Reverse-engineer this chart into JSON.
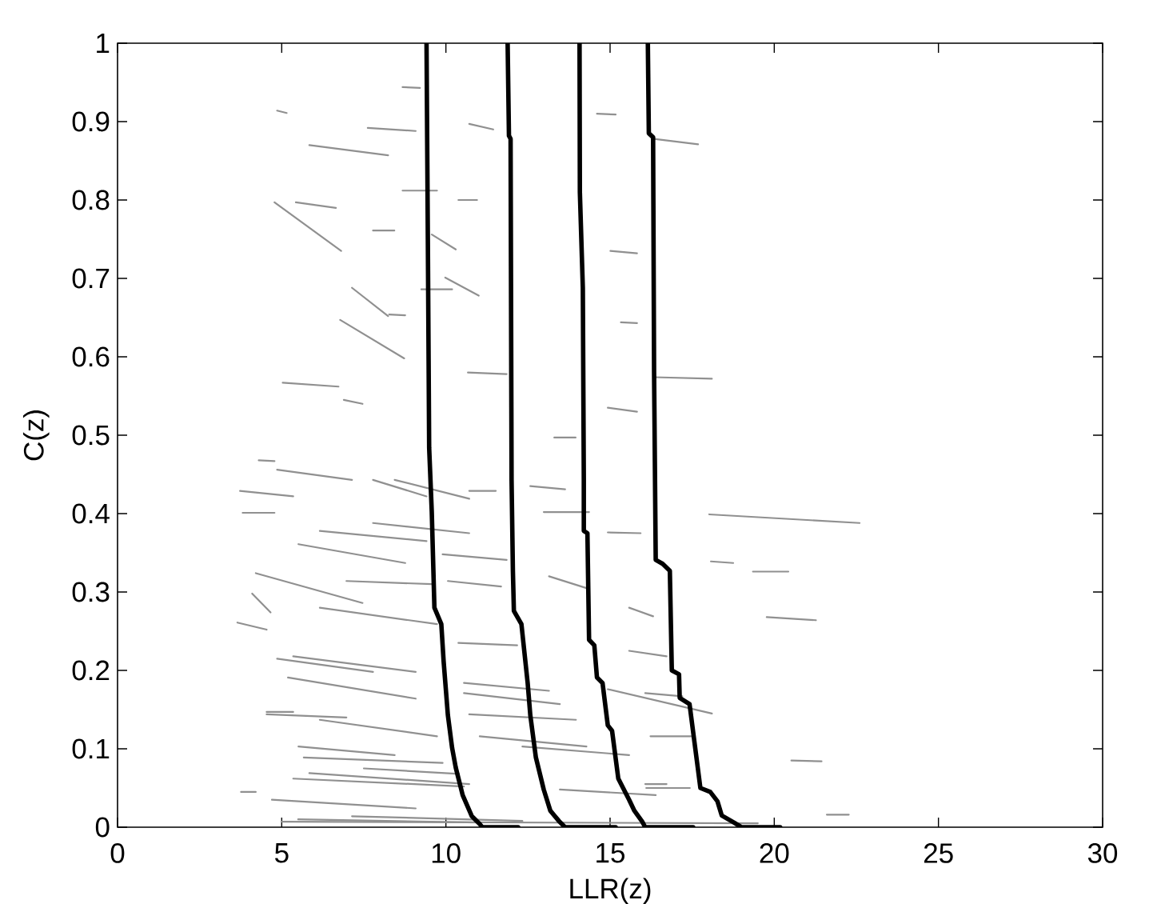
{
  "chart_data": {
    "type": "line",
    "xlabel": "LLR(z)",
    "ylabel": "C(z)",
    "xlim": [
      0,
      30
    ],
    "ylim": [
      0,
      1
    ],
    "xticks": [
      0,
      5,
      10,
      15,
      20,
      25,
      30
    ],
    "yticks": [
      0,
      0.1,
      0.2,
      0.3,
      0.4,
      0.5,
      0.6,
      0.7,
      0.8,
      0.9,
      1
    ],
    "line_style": "solid",
    "series": [
      {
        "color": "#909090",
        "x": [
          3.65,
          4.54,
          null,
          4.7,
          9.08,
          null,
          9.25,
          10.19,
          null,
          10.38,
          10.95,
          null,
          12.33,
          15.58,
          null,
          16.07,
          17.2,
          null,
          18.02,
          22.6
        ],
        "values": [
          0.261,
          0.252,
          null,
          0.035,
          0.024,
          null,
          0.686,
          0.686,
          null,
          0.8,
          0.8,
          null,
          0.103,
          0.092,
          null,
          0.171,
          0.167,
          null,
          0.399,
          0.388
        ]
      },
      {
        "color": "#909090",
        "x": [
          3.73,
          5.35,
          null,
          5.5,
          11.0,
          null,
          12.57,
          13.63,
          null,
          14.6,
          15.17,
          null,
          15.58,
          16.72,
          null,
          19.35,
          20.43,
          null,
          21.6,
          22.27
        ],
        "values": [
          0.429,
          0.422,
          null,
          0.01,
          0.006,
          null,
          0.435,
          0.431,
          null,
          0.91,
          0.909,
          null,
          0.225,
          0.218,
          null,
          0.326,
          0.326,
          null,
          0.016,
          0.016
        ]
      },
      {
        "color": "#909090",
        "x": [
          3.76,
          4.21,
          null,
          4.3,
          4.78,
          null,
          4.86,
          5.15,
          null,
          5.35,
          9.08,
          null,
          9.57,
          10.3,
          null,
          10.55,
          13.14,
          null,
          13.3,
          13.95,
          null,
          14.93,
          15.93,
          null,
          16.07,
          16.72,
          null,
          18.07,
          18.75,
          null,
          19.77,
          21.27
        ],
        "values": [
          0.045,
          0.045,
          null,
          0.468,
          0.467,
          null,
          0.914,
          0.911,
          null,
          0.218,
          0.198,
          null,
          0.756,
          0.737,
          null,
          0.184,
          0.174,
          null,
          0.497,
          0.497,
          null,
          0.376,
          0.375,
          null,
          0.055,
          0.055,
          null,
          0.339,
          0.337,
          null,
          0.268,
          0.264
        ]
      },
      {
        "color": "#909090",
        "x": [
          3.81,
          4.78,
          null,
          5.0,
          19.5,
          null,
          20.52,
          21.44
        ],
        "values": [
          0.401,
          0.401,
          null,
          0.007,
          0.005,
          null,
          0.085,
          0.084
        ]
      },
      {
        "color": "#909090",
        "x": [
          4.1,
          4.66,
          null,
          4.78,
          6.81,
          null,
          6.97,
          9.57,
          null,
          9.9,
          11.85,
          null,
          16.34,
          17.68
        ],
        "values": [
          0.298,
          0.274,
          null,
          0.797,
          0.735,
          null,
          0.314,
          0.31,
          null,
          0.348,
          0.341,
          null,
          0.878,
          0.871
        ]
      },
      {
        "color": "#909090",
        "x": [
          4.21,
          7.46,
          null,
          7.62,
          9.08,
          null,
          9.98,
          11.0,
          null,
          13.14,
          14.28,
          null,
          14.93,
          18.1
        ],
        "values": [
          0.324,
          0.286,
          null,
          0.892,
          0.888,
          null,
          0.701,
          0.678,
          null,
          0.32,
          0.305,
          null,
          0.176,
          0.145
        ]
      },
      {
        "color": "#909090",
        "x": [
          4.54,
          5.35,
          null,
          5.51,
          8.44,
          null,
          8.68,
          9.21,
          null,
          10.06,
          11.68,
          null,
          12.98,
          14.36,
          null,
          14.93,
          15.82,
          null,
          16.1,
          17.43
        ],
        "values": [
          0.147,
          0.147,
          null,
          0.103,
          0.092,
          null,
          0.944,
          0.943,
          null,
          0.314,
          0.307,
          null,
          0.402,
          0.402,
          null,
          0.535,
          0.53,
          null,
          0.05,
          0.05
        ]
      },
      {
        "color": "#909090",
        "x": [
          4.54,
          6.97,
          null,
          7.14,
          8.24,
          null,
          8.68,
          9.73,
          null,
          13.47,
          16.39
        ],
        "values": [
          0.144,
          0.14,
          null,
          0.688,
          0.652,
          null,
          0.812,
          0.812,
          null,
          0.048,
          0.041
        ]
      },
      {
        "color": "#909090",
        "x": [
          4.86,
          7.78,
          null,
          8.27,
          8.76,
          null,
          10.38,
          12.17,
          null,
          15.01,
          15.82,
          null,
          16.23,
          17.53
        ],
        "values": [
          0.215,
          0.198,
          null,
          0.654,
          0.653,
          null,
          0.235,
          0.232,
          null,
          0.735,
          0.732,
          null,
          0.116,
          0.116
        ]
      },
      {
        "color": "#909090",
        "x": [
          4.86,
          7.14,
          null,
          7.5,
          10.4,
          null,
          10.55,
          13.47,
          null,
          15.33,
          15.82,
          null,
          16.34,
          18.1
        ],
        "values": [
          0.456,
          0.443,
          null,
          0.075,
          0.068,
          null,
          0.171,
          0.157,
          null,
          0.644,
          0.643,
          null,
          0.574,
          0.572
        ]
      },
      {
        "color": "#909090",
        "x": [
          5.03,
          6.73,
          null,
          6.89,
          7.46,
          null,
          7.78,
          8.43,
          null,
          10.67,
          11.85,
          null,
          15.58,
          16.31
        ],
        "values": [
          0.567,
          0.562,
          null,
          0.545,
          0.54,
          null,
          0.761,
          0.761,
          null,
          0.58,
          0.578,
          null,
          0.28,
          0.269
        ]
      },
      {
        "color": "#909090",
        "x": [
          5.19,
          9.08,
          null,
          10.71,
          11.44
        ],
        "values": [
          0.191,
          0.164,
          null,
          0.897,
          0.89
        ]
      },
      {
        "color": "#909090",
        "x": [
          5.35,
          10.55,
          null,
          10.71,
          13.96
        ],
        "values": [
          0.062,
          0.052,
          null,
          0.144,
          0.137
        ]
      },
      {
        "color": "#909090",
        "x": [
          5.43,
          6.65,
          null,
          6.78,
          8.73,
          null,
          10.71,
          11.52
        ],
        "values": [
          0.797,
          0.79,
          null,
          0.647,
          0.598,
          null,
          0.429,
          0.429
        ]
      },
      {
        "color": "#909090",
        "x": [
          5.51,
          8.76,
          null,
          11.03,
          14.28
        ],
        "values": [
          0.361,
          0.337,
          null,
          0.116,
          0.103
        ]
      },
      {
        "color": "#909090",
        "x": [
          5.67,
          9.9
        ],
        "values": [
          0.089,
          0.082
        ]
      },
      {
        "color": "#909090",
        "x": [
          5.84,
          8.24,
          null,
          8.44,
          10.71
        ],
        "values": [
          0.87,
          0.857,
          null,
          0.443,
          0.419
        ]
      },
      {
        "color": "#909090",
        "x": [
          5.84,
          10.71
        ],
        "values": [
          0.069,
          0.055
        ]
      },
      {
        "color": "#909090",
        "x": [
          6.16,
          9.73
        ],
        "values": [
          0.137,
          0.116
        ]
      },
      {
        "color": "#909090",
        "x": [
          6.16,
          9.73
        ],
        "values": [
          0.28,
          0.259
        ]
      },
      {
        "color": "#909090",
        "x": [
          6.16,
          9.41
        ],
        "values": [
          0.378,
          0.365
        ]
      },
      {
        "color": "#909090",
        "x": [
          7.14,
          12.33
        ],
        "values": [
          0.014,
          0.008
        ]
      },
      {
        "color": "#909090",
        "x": [
          7.78,
          10.71
        ],
        "values": [
          0.388,
          0.375
        ]
      },
      {
        "color": "#909090",
        "x": [
          7.78,
          9.41
        ],
        "values": [
          0.443,
          0.422
        ]
      },
      {
        "color": "#000000",
        "x": [
          9.41,
          9.45,
          9.49,
          9.57,
          9.65,
          9.86,
          9.93,
          10.06,
          10.19,
          10.3,
          10.51,
          10.79,
          11.03,
          11.11,
          12.2
        ],
        "values": [
          1,
          0.75,
          0.484,
          0.402,
          0.28,
          0.259,
          0.212,
          0.143,
          0.101,
          0.076,
          0.041,
          0.014,
          0.004,
          0,
          0
        ]
      },
      {
        "color": "#000000",
        "x": [
          11.88,
          11.92,
          11.97,
          12.0,
          12.04,
          12.07,
          12.3,
          12.49,
          12.57,
          12.74,
          12.98,
          13.18,
          13.44,
          13.63,
          15.17
        ],
        "values": [
          1,
          0.882,
          0.878,
          0.443,
          0.327,
          0.276,
          0.259,
          0.184,
          0.143,
          0.089,
          0.048,
          0.021,
          0.008,
          0,
          0
        ]
      },
      {
        "color": "#000000",
        "x": [
          14.07,
          14.08,
          14.17,
          14.2,
          14.2,
          14.31,
          14.36,
          14.52,
          14.6,
          14.77,
          14.93,
          15.06,
          15.25,
          15.58,
          15.74,
          15.98,
          16.07,
          17.53
        ],
        "values": [
          1,
          0.81,
          0.688,
          0.443,
          0.378,
          0.375,
          0.239,
          0.232,
          0.191,
          0.184,
          0.13,
          0.123,
          0.062,
          0.035,
          0.021,
          0.007,
          0,
          0
        ]
      },
      {
        "color": "#000000",
        "x": [
          16.15,
          16.18,
          16.31,
          16.34,
          16.39,
          16.6,
          16.82,
          16.88,
          17.1,
          17.12,
          17.42,
          17.75,
          18.05,
          18.27,
          18.4,
          18.77,
          19.0,
          20.18
        ],
        "values": [
          1,
          0.885,
          0.88,
          0.58,
          0.341,
          0.336,
          0.327,
          0.2,
          0.195,
          0.165,
          0.157,
          0.05,
          0.045,
          0.033,
          0.015,
          0.006,
          0,
          0
        ]
      }
    ]
  }
}
